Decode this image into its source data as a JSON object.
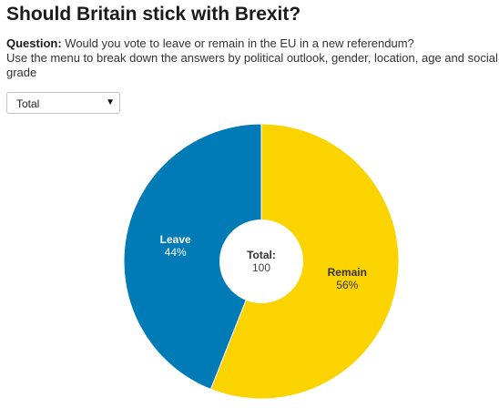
{
  "header": {
    "title": "Should Britain stick with Brexit?",
    "question_label": "Question:",
    "question_text": "Would you vote to leave or remain in the EU in a new referendum?",
    "instructions": "Use the menu to break down the answers by political outlook, gender, location, age and social grade"
  },
  "filter": {
    "selected": "Total",
    "caret_icon": "caret-down-icon"
  },
  "chart_data": {
    "type": "pie",
    "donut": true,
    "start_angle_deg": 0,
    "direction": "clockwise",
    "slices": [
      {
        "name": "Remain",
        "value": 56,
        "value_label": "56%",
        "color": "#fbd400",
        "label_color": "#333333"
      },
      {
        "name": "Leave",
        "value": 44,
        "value_label": "44%",
        "color": "#007bb6",
        "label_color": "#ffffff"
      }
    ],
    "center": {
      "label": "Total:",
      "value": "100"
    }
  }
}
